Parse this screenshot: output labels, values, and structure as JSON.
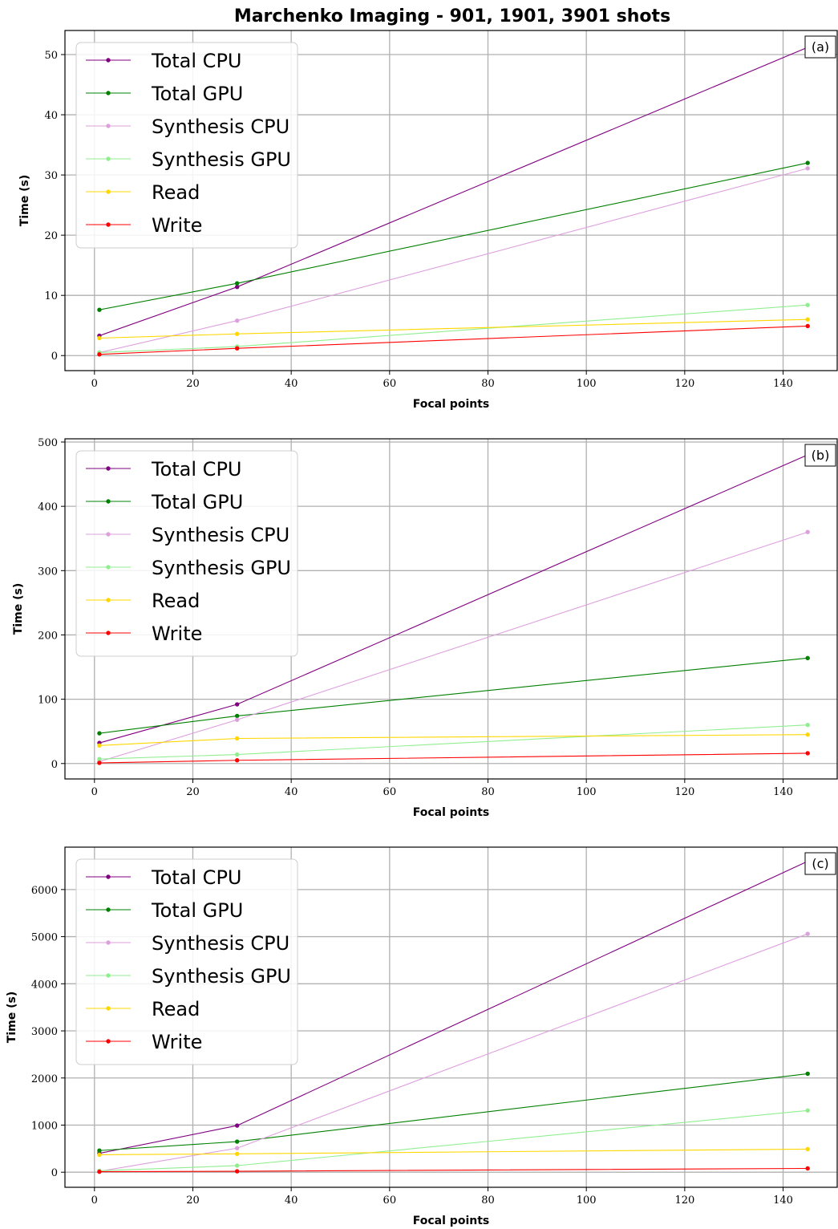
{
  "figure_title": "Marchenko Imaging - 901, 1901, 3901 shots",
  "colors": {
    "Total CPU": "#800080",
    "Total GPU": "#008000",
    "Synthesis CPU": "#dda0dd",
    "Synthesis GPU": "#90ee90",
    "Read": "#ffd700",
    "Write": "#ff0000",
    "grid": "#b0b0b0"
  },
  "chart_data": [
    {
      "type": "line",
      "panel_label": "(a)",
      "xlabel": "Focal points",
      "ylabel": "Time (s)",
      "xlim": [
        -6,
        151
      ],
      "ylim": [
        -2.5,
        54
      ],
      "xticks": [
        0,
        20,
        40,
        60,
        80,
        100,
        120,
        140
      ],
      "yticks": [
        0,
        10,
        20,
        30,
        40,
        50
      ],
      "grid": true,
      "legend_position": "top-left",
      "x": [
        1,
        29,
        145
      ],
      "series": [
        {
          "name": "Total CPU",
          "values": [
            3.3,
            11.4,
            51.2
          ]
        },
        {
          "name": "Total GPU",
          "values": [
            7.6,
            12.0,
            32.0
          ]
        },
        {
          "name": "Synthesis CPU",
          "values": [
            0.5,
            5.8,
            31.1
          ]
        },
        {
          "name": "Synthesis GPU",
          "values": [
            0.5,
            1.5,
            8.4
          ]
        },
        {
          "name": "Read",
          "values": [
            2.9,
            3.6,
            6.0
          ]
        },
        {
          "name": "Write",
          "values": [
            0.2,
            1.2,
            4.9
          ]
        }
      ]
    },
    {
      "type": "line",
      "panel_label": "(b)",
      "xlabel": "Focal points",
      "ylabel": "Time (s)",
      "xlim": [
        -6,
        151
      ],
      "ylim": [
        -24,
        505
      ],
      "xticks": [
        0,
        20,
        40,
        60,
        80,
        100,
        120,
        140
      ],
      "yticks": [
        0,
        100,
        200,
        300,
        400,
        500
      ],
      "grid": true,
      "legend_position": "top-left",
      "x": [
        1,
        29,
        145
      ],
      "series": [
        {
          "name": "Total CPU",
          "values": [
            32,
            92,
            480
          ]
        },
        {
          "name": "Total GPU",
          "values": [
            47,
            74,
            164
          ]
        },
        {
          "name": "Synthesis CPU",
          "values": [
            3,
            68,
            360
          ]
        },
        {
          "name": "Synthesis GPU",
          "values": [
            7,
            14,
            60
          ]
        },
        {
          "name": "Read",
          "values": [
            28,
            39,
            45
          ]
        },
        {
          "name": "Write",
          "values": [
            1,
            5,
            16
          ]
        }
      ]
    },
    {
      "type": "line",
      "panel_label": "(c)",
      "xlabel": "Focal points",
      "ylabel": "Time (s)",
      "xlim": [
        -6,
        151
      ],
      "ylim": [
        -320,
        6900
      ],
      "xticks": [
        0,
        20,
        40,
        60,
        80,
        100,
        120,
        140
      ],
      "yticks": [
        0,
        1000,
        2000,
        3000,
        4000,
        5000,
        6000
      ],
      "grid": true,
      "legend_position": "top-left",
      "x": [
        1,
        29,
        145
      ],
      "series": [
        {
          "name": "Total CPU",
          "values": [
            400,
            990,
            6600
          ]
        },
        {
          "name": "Total GPU",
          "values": [
            460,
            650,
            2090
          ]
        },
        {
          "name": "Synthesis CPU",
          "values": [
            20,
            510,
            5060
          ]
        },
        {
          "name": "Synthesis GPU",
          "values": [
            30,
            140,
            1310
          ]
        },
        {
          "name": "Read",
          "values": [
            370,
            390,
            490
          ]
        },
        {
          "name": "Write",
          "values": [
            10,
            20,
            80
          ]
        }
      ]
    }
  ]
}
